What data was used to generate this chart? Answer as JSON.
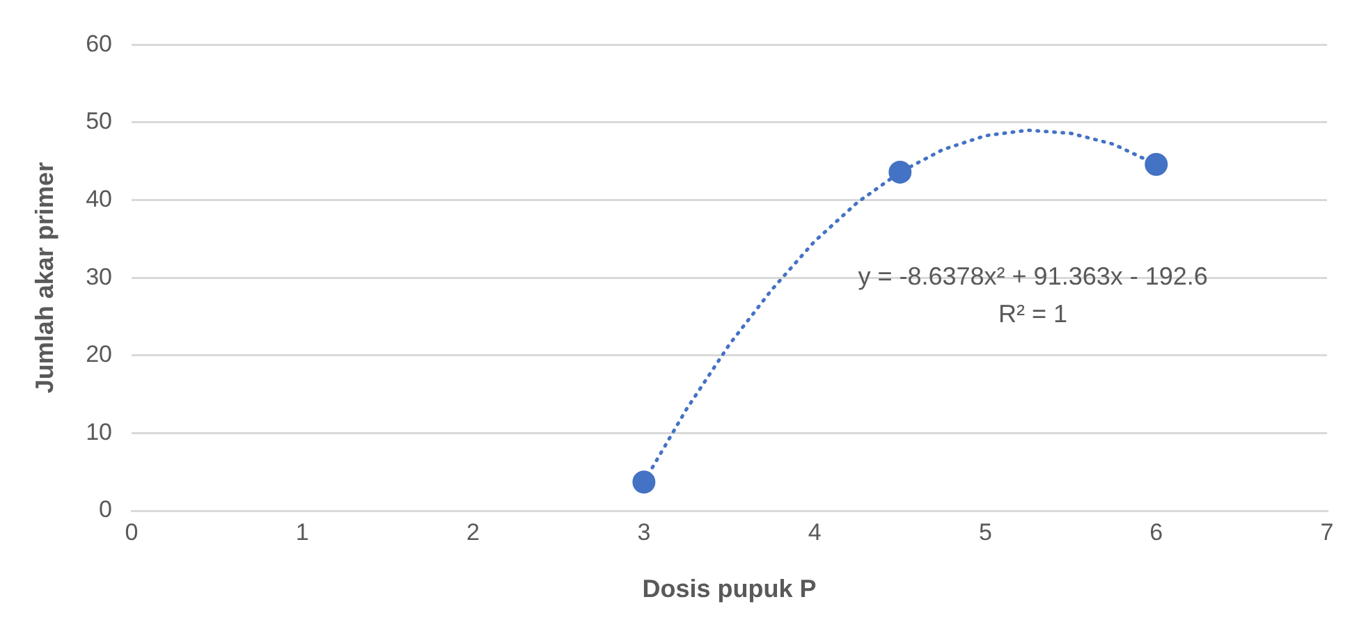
{
  "chart_data": {
    "type": "scatter",
    "xlabel": "Dosis pupuk P",
    "ylabel": "Jumlah akar primer",
    "xlim": [
      0,
      7
    ],
    "xticks": [
      0,
      1,
      2,
      3,
      4,
      5,
      6,
      7
    ],
    "ylim": [
      0,
      60
    ],
    "yticks": [
      0,
      10,
      20,
      30,
      40,
      50,
      60
    ],
    "grid": "y",
    "series": [
      {
        "type": "scatter",
        "color": "#4472c4",
        "marker": "circle",
        "x": [
          3,
          4.5,
          6
        ],
        "values": [
          3.7,
          43.6,
          44.6
        ]
      },
      {
        "type": "line",
        "color": "#4472c4",
        "line_style": "dotted",
        "marker": "none",
        "x": [
          3,
          3.25,
          3.5,
          3.75,
          4,
          4.25,
          4.5,
          4.75,
          5,
          5.25,
          5.5,
          5.75,
          6
        ],
        "values": [
          3.7,
          13.1,
          21.4,
          28.5,
          34.7,
          39.7,
          43.6,
          46.5,
          48.3,
          49,
          48.6,
          47.2,
          44.6
        ]
      }
    ],
    "annotations": [
      "y = -8.6378x² + 91.363x - 192.6",
      "R² = 1"
    ]
  }
}
